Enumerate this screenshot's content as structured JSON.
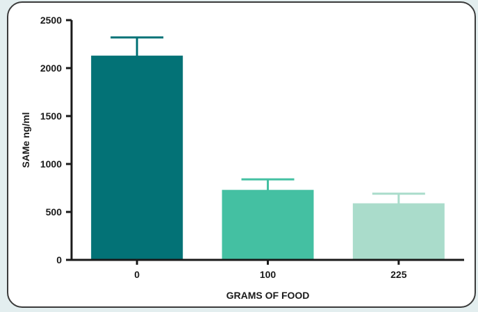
{
  "chart_data": {
    "type": "bar",
    "categories": [
      "0",
      "100",
      "225"
    ],
    "values": [
      2130,
      730,
      590
    ],
    "error_upper": [
      2320,
      840,
      690
    ],
    "xlabel": "GRAMS OF FOOD",
    "ylabel": "SAMe ng/ml",
    "ylim": [
      0,
      2500
    ],
    "yticks": [
      0,
      500,
      1000,
      1500,
      2000,
      2500
    ],
    "grid": false,
    "colors": [
      "#037276",
      "#44c0a2",
      "#aadccb"
    ],
    "errorbar_colors": [
      "#037276",
      "#44c0a2",
      "#aadccb"
    ]
  }
}
